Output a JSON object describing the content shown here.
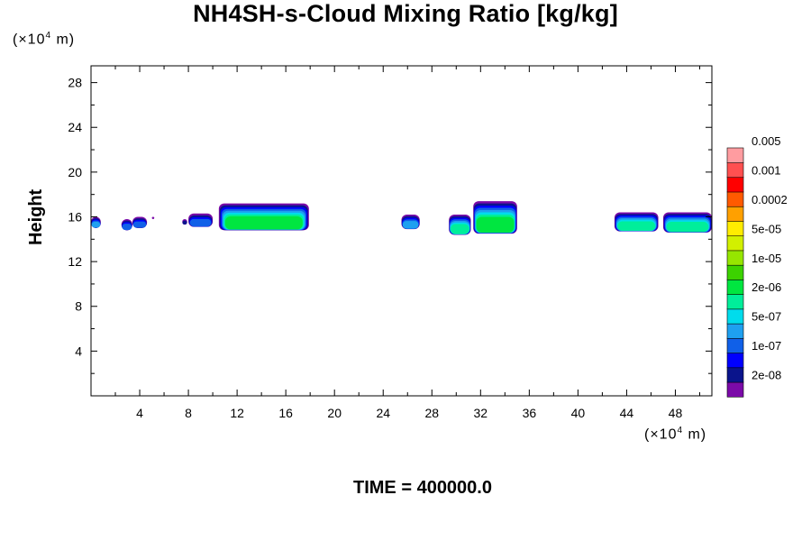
{
  "chart_data": {
    "type": "contour",
    "title": "NH4SH-s-Cloud Mixing Ratio [kg/kg]",
    "xlabel": "",
    "ylabel": "Height",
    "x_unit": {
      "prefix": "(×10",
      "exponent": "4",
      "suffix": " m)"
    },
    "y_unit": {
      "prefix": "(×10",
      "exponent": "4",
      "suffix": " m)"
    },
    "xlim": [
      0,
      51
    ],
    "ylim": [
      0,
      29.5
    ],
    "x_major_ticks": [
      4,
      8,
      12,
      16,
      20,
      24,
      28,
      32,
      36,
      40,
      44,
      48
    ],
    "x_minor_ticks": [
      2,
      6,
      10,
      14,
      18,
      22,
      26,
      30,
      34,
      38,
      42,
      46,
      50
    ],
    "y_major_ticks": [
      4,
      8,
      12,
      16,
      20,
      24,
      28
    ],
    "y_minor_ticks": [
      2,
      6,
      10,
      14,
      18,
      22,
      26
    ],
    "colorbar": {
      "levels": [
        "2e-08",
        "1e-07",
        "5e-07",
        "2e-06",
        "1e-05",
        "5e-05",
        "0.0002",
        "0.001",
        "0.005"
      ],
      "colors": [
        "#7b0aa8",
        "#0a148c",
        "#0000ff",
        "#1060e8",
        "#1ea0f0",
        "#00dcec",
        "#00ee9a",
        "#00e640",
        "#3cd200",
        "#96e600",
        "#d2f000",
        "#ffec00",
        "#ffa000",
        "#ff5a00",
        "#ff0000",
        "#ff5050",
        "#ff9ca0"
      ]
    },
    "clouds": [
      {
        "x_range": [
          0.0,
          0.8
        ],
        "top": 16.0,
        "base": 15.0,
        "max_band": 5
      },
      {
        "x_range": [
          2.5,
          3.4
        ],
        "top": 15.8,
        "base": 14.8,
        "max_band": 4
      },
      {
        "x_range": [
          3.4,
          4.6
        ],
        "top": 16.0,
        "base": 15.0,
        "max_band": 4
      },
      {
        "x_range": [
          5.0,
          5.2
        ],
        "top": 16.0,
        "base": 15.8,
        "max_band": 1
      },
      {
        "x_range": [
          7.5,
          7.9
        ],
        "top": 15.8,
        "base": 15.3,
        "max_band": 2
      },
      {
        "x_range": [
          8.0,
          10.0
        ],
        "top": 16.3,
        "base": 15.1,
        "max_band": 4
      },
      {
        "x_range": [
          10.5,
          17.9
        ],
        "top": 17.2,
        "base": 14.8,
        "max_band": 8
      },
      {
        "x_range": [
          25.5,
          27.0
        ],
        "top": 16.2,
        "base": 14.9,
        "max_band": 5
      },
      {
        "x_range": [
          29.4,
          31.2
        ],
        "top": 16.2,
        "base": 14.4,
        "max_band": 7
      },
      {
        "x_range": [
          31.4,
          35.0
        ],
        "top": 17.4,
        "base": 14.5,
        "max_band": 8
      },
      {
        "x_range": [
          43.0,
          46.6
        ],
        "top": 16.4,
        "base": 14.7,
        "max_band": 7
      },
      {
        "x_range": [
          47.0,
          51.0
        ],
        "top": 16.4,
        "base": 14.6,
        "max_band": 7
      }
    ]
  },
  "footer": {
    "time_label": "TIME = 400000.0"
  }
}
